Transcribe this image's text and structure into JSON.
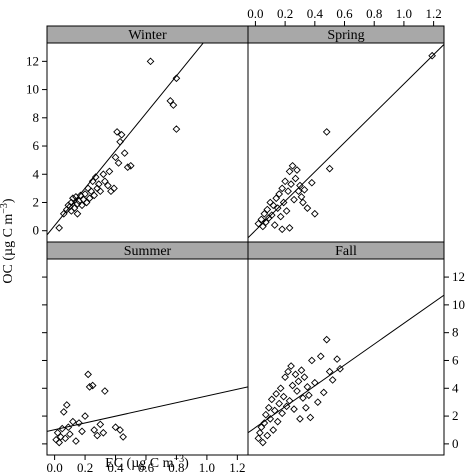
{
  "chart_data": {
    "type": "scatter",
    "xlabel_prefix": "EC (µg C m",
    "ylabel_prefix": "OC (µg C m",
    "unit_exponent": "−3",
    "unit_suffix": ")",
    "xlim": [
      -0.05,
      1.27
    ],
    "ylim": [
      -0.8,
      13.3
    ],
    "x_ticks": [
      0.0,
      0.2,
      0.4,
      0.6,
      0.8,
      1.0,
      1.2
    ],
    "y_ticks": [
      0,
      2,
      4,
      6,
      8,
      10,
      12
    ],
    "grid": false,
    "panels": [
      {
        "name": "Winter",
        "fit_line": [
          [
            -0.05,
            -0.3
          ],
          [
            1.27,
            17.2
          ]
        ],
        "points": [
          [
            0.03,
            0.2
          ],
          [
            0.06,
            1.2
          ],
          [
            0.08,
            1.5
          ],
          [
            0.09,
            1.8
          ],
          [
            0.1,
            1.7
          ],
          [
            0.11,
            1.4
          ],
          [
            0.11,
            2.0
          ],
          [
            0.12,
            2.3
          ],
          [
            0.13,
            1.6
          ],
          [
            0.14,
            2.4
          ],
          [
            0.15,
            1.9
          ],
          [
            0.15,
            1.2
          ],
          [
            0.16,
            2.1
          ],
          [
            0.17,
            2.5
          ],
          [
            0.18,
            1.8
          ],
          [
            0.19,
            2.2
          ],
          [
            0.2,
            2.6
          ],
          [
            0.21,
            2.0
          ],
          [
            0.22,
            3.0
          ],
          [
            0.23,
            2.3
          ],
          [
            0.24,
            2.8
          ],
          [
            0.25,
            3.5
          ],
          [
            0.26,
            2.5
          ],
          [
            0.27,
            3.8
          ],
          [
            0.28,
            3.0
          ],
          [
            0.29,
            3.3
          ],
          [
            0.3,
            2.8
          ],
          [
            0.32,
            4.0
          ],
          [
            0.33,
            3.5
          ],
          [
            0.35,
            3.2
          ],
          [
            0.36,
            4.2
          ],
          [
            0.37,
            2.8
          ],
          [
            0.39,
            3.0
          ],
          [
            0.4,
            5.2
          ],
          [
            0.41,
            7.0
          ],
          [
            0.42,
            4.8
          ],
          [
            0.43,
            6.3
          ],
          [
            0.44,
            6.8
          ],
          [
            0.46,
            5.5
          ],
          [
            0.48,
            4.5
          ],
          [
            0.5,
            4.6
          ],
          [
            0.63,
            12.0
          ],
          [
            0.76,
            9.2
          ],
          [
            0.78,
            8.9
          ],
          [
            0.8,
            10.8
          ],
          [
            0.8,
            7.2
          ]
        ]
      },
      {
        "name": "Spring",
        "fit_line": [
          [
            -0.05,
            -0.5
          ],
          [
            1.27,
            13.2
          ]
        ],
        "points": [
          [
            0.02,
            0.5
          ],
          [
            0.04,
            0.8
          ],
          [
            0.05,
            0.3
          ],
          [
            0.06,
            1.2
          ],
          [
            0.07,
            0.6
          ],
          [
            0.08,
            1.5
          ],
          [
            0.09,
            0.9
          ],
          [
            0.1,
            2.0
          ],
          [
            0.11,
            1.1
          ],
          [
            0.12,
            1.8
          ],
          [
            0.13,
            0.4
          ],
          [
            0.14,
            2.3
          ],
          [
            0.15,
            1.6
          ],
          [
            0.16,
            2.6
          ],
          [
            0.17,
            1.0
          ],
          [
            0.18,
            3.0
          ],
          [
            0.19,
            2.0
          ],
          [
            0.2,
            3.5
          ],
          [
            0.21,
            1.4
          ],
          [
            0.22,
            2.8
          ],
          [
            0.23,
            4.2
          ],
          [
            0.24,
            3.3
          ],
          [
            0.25,
            4.6
          ],
          [
            0.26,
            2.2
          ],
          [
            0.27,
            3.7
          ],
          [
            0.28,
            4.3
          ],
          [
            0.29,
            2.8
          ],
          [
            0.3,
            3.2
          ],
          [
            0.31,
            2.4
          ],
          [
            0.32,
            2.0
          ],
          [
            0.33,
            2.9
          ],
          [
            0.35,
            1.6
          ],
          [
            0.38,
            3.4
          ],
          [
            0.4,
            1.2
          ],
          [
            0.48,
            7.0
          ],
          [
            0.5,
            4.4
          ],
          [
            0.23,
            0.2
          ],
          [
            0.18,
            0.1
          ],
          [
            1.19,
            12.4
          ]
        ]
      },
      {
        "name": "Summer",
        "fit_line": [
          [
            -0.05,
            0.9
          ],
          [
            1.27,
            4.1
          ]
        ],
        "points": [
          [
            0.01,
            0.3
          ],
          [
            0.02,
            0.8
          ],
          [
            0.03,
            0.1
          ],
          [
            0.04,
            0.5
          ],
          [
            0.05,
            1.1
          ],
          [
            0.06,
            2.3
          ],
          [
            0.07,
            0.4
          ],
          [
            0.08,
            2.8
          ],
          [
            0.09,
            1.2
          ],
          [
            0.1,
            0.7
          ],
          [
            0.12,
            1.6
          ],
          [
            0.14,
            0.2
          ],
          [
            0.16,
            1.5
          ],
          [
            0.18,
            0.9
          ],
          [
            0.2,
            2.0
          ],
          [
            0.22,
            5.0
          ],
          [
            0.23,
            4.1
          ],
          [
            0.25,
            4.2
          ],
          [
            0.26,
            1.0
          ],
          [
            0.28,
            0.6
          ],
          [
            0.3,
            1.4
          ],
          [
            0.32,
            0.8
          ],
          [
            0.33,
            3.8
          ],
          [
            0.4,
            1.2
          ],
          [
            0.43,
            1.0
          ],
          [
            0.45,
            0.5
          ]
        ]
      },
      {
        "name": "Fall",
        "fit_line": [
          [
            -0.05,
            0.8
          ],
          [
            1.27,
            10.7
          ]
        ],
        "points": [
          [
            0.02,
            0.4
          ],
          [
            0.03,
            0.8
          ],
          [
            0.04,
            1.2
          ],
          [
            0.05,
            0.1
          ],
          [
            0.06,
            1.5
          ],
          [
            0.07,
            2.1
          ],
          [
            0.08,
            0.6
          ],
          [
            0.09,
            2.6
          ],
          [
            0.1,
            1.8
          ],
          [
            0.11,
            3.2
          ],
          [
            0.12,
            1.0
          ],
          [
            0.13,
            2.4
          ],
          [
            0.14,
            3.6
          ],
          [
            0.15,
            1.6
          ],
          [
            0.16,
            2.9
          ],
          [
            0.17,
            4.0
          ],
          [
            0.18,
            2.2
          ],
          [
            0.19,
            3.4
          ],
          [
            0.2,
            4.8
          ],
          [
            0.21,
            2.7
          ],
          [
            0.22,
            5.2
          ],
          [
            0.23,
            3.1
          ],
          [
            0.24,
            5.6
          ],
          [
            0.25,
            4.2
          ],
          [
            0.26,
            2.5
          ],
          [
            0.27,
            5.0
          ],
          [
            0.28,
            3.8
          ],
          [
            0.29,
            4.5
          ],
          [
            0.3,
            1.8
          ],
          [
            0.31,
            5.3
          ],
          [
            0.32,
            3.3
          ],
          [
            0.33,
            4.8
          ],
          [
            0.34,
            2.6
          ],
          [
            0.35,
            4.1
          ],
          [
            0.36,
            3.5
          ],
          [
            0.37,
            1.9
          ],
          [
            0.38,
            6.0
          ],
          [
            0.4,
            4.4
          ],
          [
            0.42,
            3.0
          ],
          [
            0.44,
            6.3
          ],
          [
            0.46,
            3.7
          ],
          [
            0.48,
            7.5
          ],
          [
            0.5,
            5.2
          ],
          [
            0.52,
            4.6
          ],
          [
            0.55,
            6.1
          ],
          [
            0.57,
            5.4
          ]
        ]
      }
    ]
  }
}
